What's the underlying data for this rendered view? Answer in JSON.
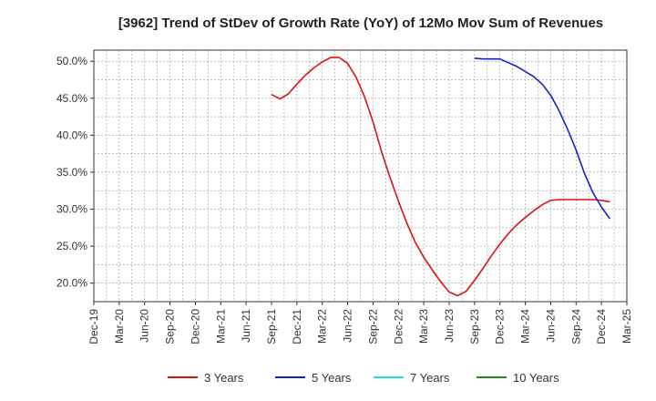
{
  "chart_data": {
    "type": "line",
    "title": "[3962]  Trend of StDev of Growth Rate (YoY) of 12Mo Mov Sum of Revenues",
    "xlabel": "",
    "ylabel": "",
    "x_ticks": [
      "Dec-19",
      "Mar-20",
      "Jun-20",
      "Sep-20",
      "Dec-20",
      "Mar-21",
      "Jun-21",
      "Sep-21",
      "Dec-21",
      "Mar-22",
      "Jun-22",
      "Sep-22",
      "Dec-22",
      "Mar-23",
      "Jun-23",
      "Sep-23",
      "Dec-23",
      "Mar-24",
      "Jun-24",
      "Sep-24",
      "Dec-24",
      "Mar-25"
    ],
    "y_ticks": [
      "20.0%",
      "25.0%",
      "30.0%",
      "35.0%",
      "40.0%",
      "45.0%",
      "50.0%"
    ],
    "y_tick_values": [
      20,
      25,
      30,
      35,
      40,
      45,
      50
    ],
    "ylim": [
      17.5,
      51.5
    ],
    "x_range_months": [
      0,
      63
    ],
    "grid": true,
    "legend_position": "bottom",
    "series": [
      {
        "name": "3 Years",
        "color": "#dd1111",
        "x_months": [
          21,
          22,
          23,
          24,
          25,
          26,
          27,
          28,
          29,
          30,
          31,
          32,
          33,
          34,
          35,
          36,
          37,
          38,
          39,
          40,
          41,
          42,
          43,
          44,
          45,
          46,
          47,
          48,
          49,
          50,
          51,
          52,
          53,
          54,
          55,
          56,
          57,
          58,
          59,
          60,
          61
        ],
        "values": [
          45.5,
          44.9,
          45.6,
          46.9,
          48.1,
          49.1,
          49.9,
          50.5,
          50.5,
          49.7,
          47.8,
          45.2,
          41.8,
          37.8,
          34.3,
          31.1,
          28.1,
          25.5,
          23.5,
          21.8,
          20.2,
          18.8,
          18.3,
          18.9,
          20.4,
          22.0,
          23.7,
          25.3,
          26.7,
          27.9,
          28.9,
          29.8,
          30.6,
          31.2,
          31.3,
          31.3,
          31.3,
          31.3,
          31.3,
          31.2,
          31.0
        ]
      },
      {
        "name": "5 Years",
        "color": "#1122cc",
        "x_months": [
          45,
          46,
          47,
          48,
          49,
          50,
          51,
          52,
          53,
          54,
          55,
          56,
          57,
          58,
          59,
          60,
          61
        ],
        "values": [
          50.4,
          50.3,
          50.3,
          50.3,
          49.8,
          49.3,
          48.6,
          47.9,
          46.9,
          45.4,
          43.3,
          40.8,
          38.0,
          34.8,
          32.2,
          30.3,
          28.7
        ]
      },
      {
        "name": "7 Years",
        "color": "#22dddd",
        "x_months": [],
        "values": []
      },
      {
        "name": "10 Years",
        "color": "#228822",
        "x_months": [],
        "values": []
      }
    ]
  }
}
